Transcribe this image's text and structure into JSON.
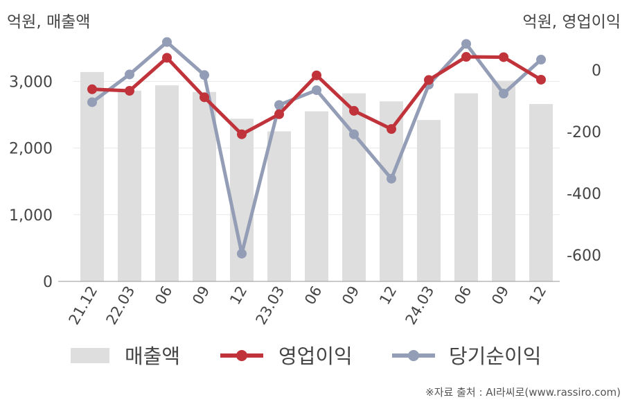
{
  "units": {
    "left": "억원, 매출액",
    "right": "억원, 영업이익"
  },
  "source": "※자료 출처 : AI라씨로(www.rassiro.com)",
  "colors": {
    "bar": "#dedede",
    "operating_profit": "#c0333a",
    "net_income": "#939db5",
    "axis": "#aaaaaa",
    "grid": "#e8e8e8",
    "text": "#444444"
  },
  "chart_data": {
    "type": "bar",
    "categories": [
      "21.12",
      "22.03",
      "06",
      "09",
      "12",
      "23.03",
      "06",
      "09",
      "12",
      "24.03",
      "06",
      "09",
      "12"
    ],
    "left_axis": {
      "ticks": [
        "0",
        "1,000",
        "2,000",
        "3,000"
      ],
      "ylim": [
        0,
        3700
      ]
    },
    "right_axis": {
      "ticks": [
        "-600",
        "-400",
        "-200",
        "0"
      ],
      "ylim": [
        -685,
        115
      ]
    },
    "grid": true,
    "legend_position": "bottom",
    "series": [
      {
        "name": "매출액",
        "type": "bar",
        "axis": "left",
        "values": [
          3140,
          2860,
          2940,
          2840,
          2440,
          2250,
          2550,
          2820,
          2700,
          2420,
          2820,
          3010,
          2660
        ]
      },
      {
        "name": "영업이익",
        "type": "line",
        "axis": "right",
        "values": [
          -62,
          -67,
          40,
          -88,
          -208,
          -143,
          -17,
          -132,
          -191,
          -32,
          43,
          42,
          -31
        ]
      },
      {
        "name": "당기순이익",
        "type": "line",
        "axis": "right",
        "values": [
          -104,
          -14,
          91,
          -16,
          -595,
          -113,
          -65,
          -208,
          -352,
          -47,
          85,
          -76,
          34
        ]
      }
    ]
  }
}
